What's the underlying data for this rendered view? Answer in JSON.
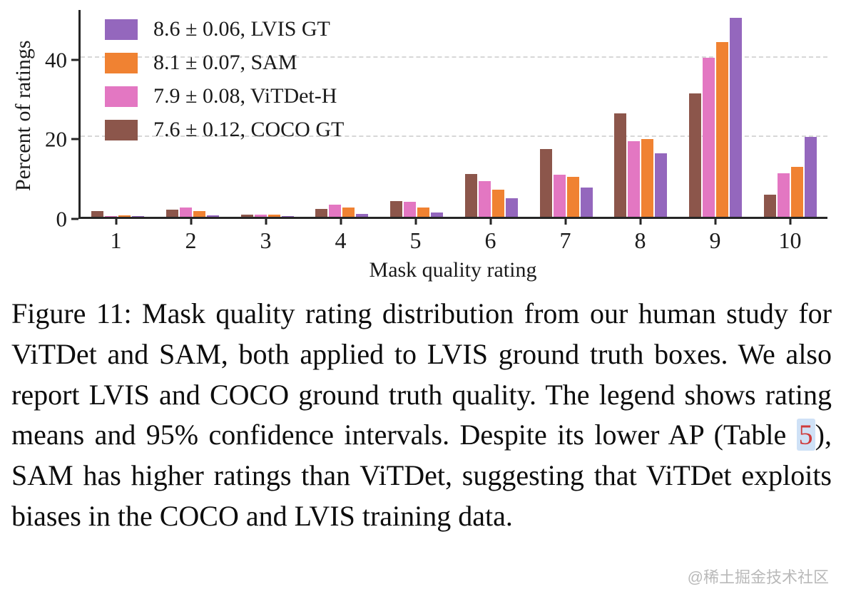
{
  "chart_data": {
    "type": "bar",
    "title": "",
    "xlabel": "Mask quality rating",
    "ylabel": "Percent of ratings",
    "categories": [
      "1",
      "2",
      "3",
      "4",
      "5",
      "6",
      "7",
      "8",
      "9",
      "10"
    ],
    "series": [
      {
        "name": "COCO GT",
        "color": "#8c564b",
        "values": [
          1.5,
          1.8,
          0.5,
          2.0,
          4.0,
          10.8,
          17.0,
          26.0,
          31.0,
          5.5
        ]
      },
      {
        "name": "ViTDet-H",
        "color": "#e377c2",
        "values": [
          0.2,
          2.3,
          0.6,
          3.0,
          3.8,
          9.0,
          10.5,
          19.0,
          40.0,
          11.0
        ]
      },
      {
        "name": "SAM",
        "color": "#f08232",
        "values": [
          0.4,
          1.5,
          0.6,
          2.4,
          2.4,
          6.8,
          10.0,
          19.5,
          44.0,
          12.5
        ]
      },
      {
        "name": "LVIS GT",
        "color": "#9467bd",
        "values": [
          0.1,
          0.3,
          0.2,
          0.7,
          1.0,
          4.7,
          7.3,
          16.0,
          50.0,
          20.0
        ]
      }
    ],
    "legend": [
      {
        "label": "8.6 ± 0.06, LVIS GT",
        "color": "#9467bd"
      },
      {
        "label": "8.1 ± 0.07, SAM",
        "color": "#f08232"
      },
      {
        "label": "7.9 ± 0.08, ViTDet-H",
        "color": "#e377c2"
      },
      {
        "label": "7.6 ± 0.12, COCO GT",
        "color": "#8c564b"
      }
    ],
    "ylim": [
      0,
      52
    ],
    "yticks": [
      0,
      20,
      40
    ],
    "grid": true,
    "legend_position": "upper-left",
    "axis_color": "#262626",
    "gridline_color": "#d7d7d7"
  },
  "caption": {
    "part1": "Figure 11: Mask quality rating distribution from our human study for ViTDet and SAM, both applied to LVIS ground truth boxes. We also report LVIS and COCO ground truth quality. The legend shows rating means and 95% confidence intervals. Despite its lower AP (Table ",
    "link": "5",
    "part2": "), SAM has higher ratings than ViTDet, suggesting that ViTDet exploits biases in the COCO and LVIS training data."
  },
  "watermark": "@稀土掘金技术社区"
}
